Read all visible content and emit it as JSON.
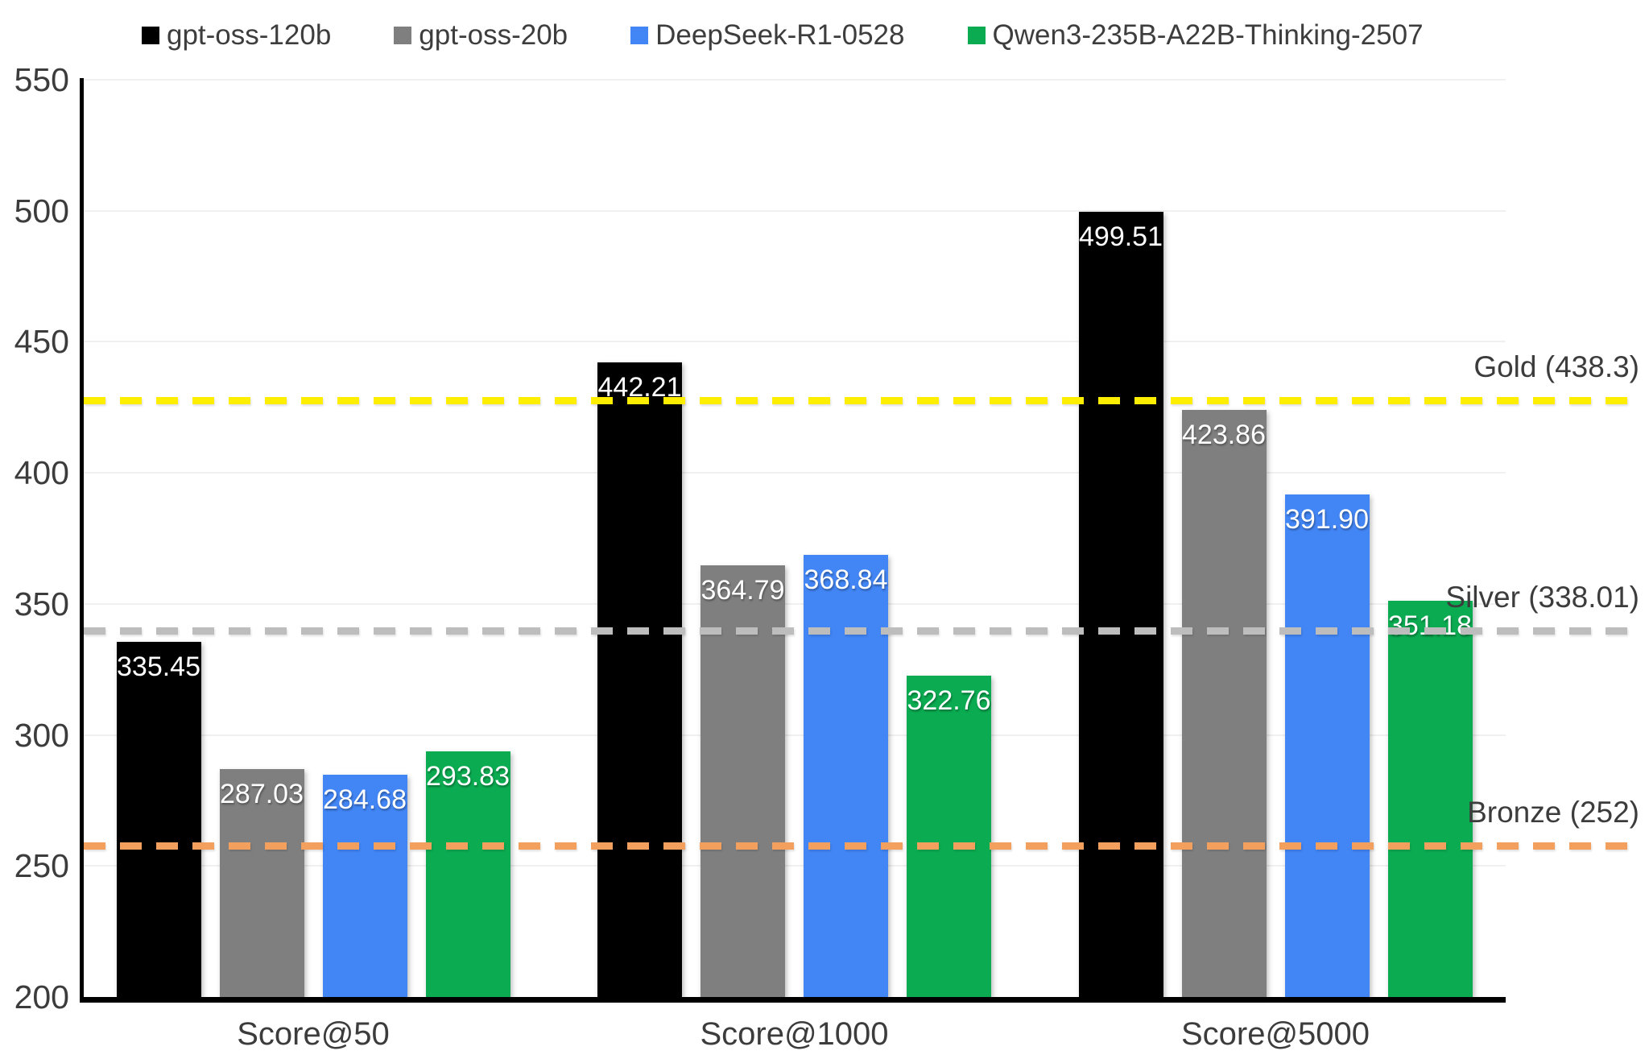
{
  "chart_data": {
    "type": "bar",
    "title": "",
    "xlabel": "",
    "ylabel": "",
    "legend_position": "top",
    "grid": "faint horizontal gridlines at each 50-unit step",
    "value_labels": "white numbers inside the top of each bar",
    "categories": [
      "Score@50",
      "Score@1000",
      "Score@5000"
    ],
    "series": [
      {
        "name": "gpt-oss-120b",
        "color": "#000000",
        "values": [
          335.45,
          442.21,
          499.51
        ],
        "labels": [
          "335.45",
          "442.21",
          "499.51"
        ]
      },
      {
        "name": "gpt-oss-20b",
        "color": "#7f7f7f",
        "values": [
          287.03,
          364.79,
          423.86
        ],
        "labels": [
          "287.03",
          "364.79",
          "423.86"
        ]
      },
      {
        "name": "DeepSeek-R1-0528",
        "color": "#4285f4",
        "values": [
          284.68,
          368.84,
          391.9
        ],
        "labels": [
          "284.68",
          "368.84",
          "391.90"
        ]
      },
      {
        "name": "Qwen3-235B-A22B-Thinking-2507",
        "color": "#0bab51",
        "values": [
          293.83,
          322.76,
          351.18
        ],
        "labels": [
          "293.83",
          "322.76",
          "351.18"
        ]
      }
    ],
    "reference_lines": [
      {
        "name": "Gold",
        "label": "Gold (438.3)",
        "value": 438.3,
        "display_value": 427.7,
        "color": "#ffee00"
      },
      {
        "name": "Silver",
        "label": "Silver (338.01)",
        "value": 338.01,
        "display_value": 339.8,
        "color": "#bdbdbd"
      },
      {
        "name": "Bronze",
        "label": "Bronze (252)",
        "value": 252,
        "display_value": 257.8,
        "color": "#f3a05f"
      }
    ],
    "y_axis": {
      "min": 200,
      "max": 550,
      "step": 50,
      "tick_labels": [
        "200",
        "250",
        "300",
        "350",
        "400",
        "450",
        "500",
        "550"
      ]
    },
    "ylim": [
      200,
      550
    ]
  },
  "colors": {
    "axis": "#000000",
    "text": "#3c3c3c",
    "grid": "#f0f0f0",
    "bar_label": "#ffffff",
    "background": "#ffffff"
  }
}
